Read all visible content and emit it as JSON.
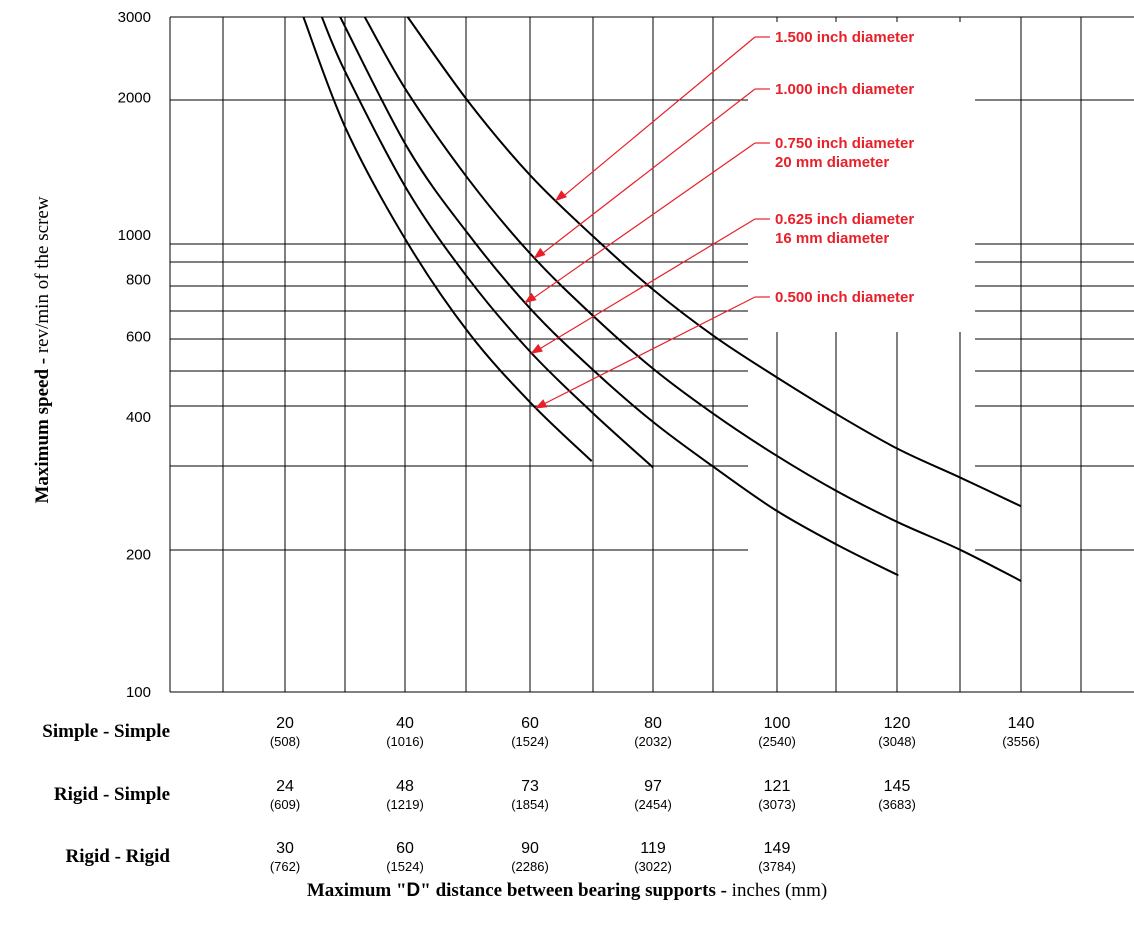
{
  "chart_data": {
    "type": "line",
    "y_scale": "log",
    "ylim": [
      100,
      3000
    ],
    "y_ticks": [
      100,
      200,
      400,
      600,
      800,
      1000,
      2000,
      3000
    ],
    "y_ticks_label": [
      "100",
      "200",
      "400",
      "600",
      "800",
      "1000",
      "2000",
      "3000"
    ],
    "ylabel_bold": "Maximum speed -",
    "ylabel_normal": " rev/min of the screw",
    "x_units": "Simple - Simple distance, inches",
    "xlim": [
      10,
      155
    ],
    "xlabel_bold": "Maximum \"",
    "xlabel_d": "D",
    "xlabel_bold2": "\" distance between bearing supports -",
    "xlabel_normal": " inches (mm)",
    "series": [
      {
        "name": "0.500 inch diameter",
        "x": [
          23,
          30,
          40,
          50,
          60,
          70
        ],
        "y": [
          3000,
          1700,
          960,
          610,
          430,
          320
        ]
      },
      {
        "name": "0.625 inch diameter\n16 mm diameter",
        "x": [
          26,
          30,
          40,
          50,
          60,
          70,
          80
        ],
        "y": [
          3000,
          2250,
          1250,
          800,
          555,
          410,
          310
        ]
      },
      {
        "name": "0.750 inch diameter\n20 mm diameter",
        "x": [
          29,
          40,
          50,
          60,
          70,
          80,
          90,
          100,
          110,
          120
        ],
        "y": [
          3000,
          1550,
          1000,
          690,
          510,
          390,
          310,
          250,
          210,
          180
        ]
      },
      {
        "name": "1.000 inch diameter",
        "x": [
          33,
          40,
          50,
          60,
          70,
          80,
          90,
          100,
          110,
          120,
          130,
          140
        ],
        "y": [
          3000,
          2050,
          1320,
          910,
          670,
          510,
          405,
          330,
          275,
          235,
          205,
          175
        ]
      },
      {
        "name": "1.500 inch diameter",
        "x": [
          40,
          50,
          60,
          70,
          80,
          90,
          100,
          110,
          120,
          130,
          140
        ],
        "y": [
          3000,
          1950,
          1350,
          1000,
          760,
          600,
          490,
          405,
          340,
          295,
          255
        ]
      }
    ]
  },
  "rows": [
    {
      "label": "Simple - Simple",
      "values": [
        {
          "in": "20",
          "mm": "(508)"
        },
        {
          "in": "40",
          "mm": "(1016)"
        },
        {
          "in": "60",
          "mm": "(1524)"
        },
        {
          "in": "80",
          "mm": "(2032)"
        },
        {
          "in": "100",
          "mm": "(2540)"
        },
        {
          "in": "120",
          "mm": "(3048)"
        },
        {
          "in": "140",
          "mm": "(3556)"
        }
      ]
    },
    {
      "label": "Rigid - Simple",
      "values": [
        {
          "in": "24",
          "mm": "(609)"
        },
        {
          "in": "48",
          "mm": "(1219)"
        },
        {
          "in": "73",
          "mm": "(1854)"
        },
        {
          "in": "97",
          "mm": "(2454)"
        },
        {
          "in": "121",
          "mm": "(3073)"
        },
        {
          "in": "145",
          "mm": "(3683)"
        }
      ]
    },
    {
      "label": "Rigid - Rigid",
      "values": [
        {
          "in": "30",
          "mm": "(762)"
        },
        {
          "in": "60",
          "mm": "(1524)"
        },
        {
          "in": "90",
          "mm": "(2286)"
        },
        {
          "in": "119",
          "mm": "(3022)"
        },
        {
          "in": "149",
          "mm": "(3784)"
        }
      ]
    }
  ],
  "colors": {
    "annotation": "#e8202a",
    "grid": "#000000",
    "curve": "#000000"
  }
}
